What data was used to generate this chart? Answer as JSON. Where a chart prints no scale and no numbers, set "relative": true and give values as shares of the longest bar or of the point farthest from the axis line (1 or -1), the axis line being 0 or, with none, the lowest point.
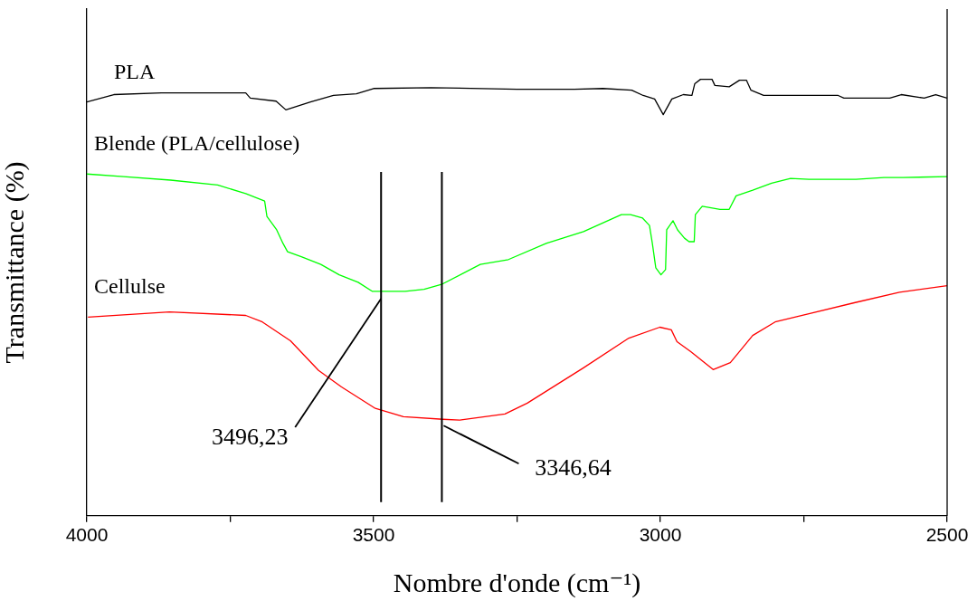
{
  "chart_data": {
    "type": "line",
    "relative": true,
    "xlabel": "Nombre d'onde (cm⁻¹)",
    "ylabel": "Transmittance (%)",
    "xlim": [
      4000,
      2500
    ],
    "xticks": [
      4000,
      {
        "value": 3750,
        "label": null
      },
      3500,
      {
        "value": 3250,
        "label": null
      },
      3000,
      {
        "value": 2750,
        "label": null
      },
      2500
    ],
    "grid": false,
    "legend": false,
    "marker": "none",
    "line_style": "solid",
    "series": [
      {
        "name": "PLA",
        "color": "#000000",
        "x": [
          4000,
          3953,
          3870,
          3723,
          3715,
          3670,
          3653,
          3610,
          3570,
          3530,
          3500,
          3400,
          3250,
          3150,
          3100,
          3050,
          3030,
          3010,
          2995,
          2980,
          2960,
          2945,
          2940,
          2930,
          2910,
          2905,
          2880,
          2862,
          2850,
          2842,
          2820,
          2690,
          2680,
          2600,
          2580,
          2540,
          2520,
          2500
        ],
        "values": [
          0.948,
          0.965,
          0.969,
          0.969,
          0.957,
          0.95,
          0.93,
          0.948,
          0.963,
          0.967,
          0.979,
          0.981,
          0.977,
          0.977,
          0.979,
          0.975,
          0.963,
          0.955,
          0.919,
          0.955,
          0.965,
          0.963,
          0.99,
          1.0,
          1.0,
          0.986,
          0.983,
          0.998,
          0.998,
          0.975,
          0.963,
          0.963,
          0.957,
          0.957,
          0.965,
          0.957,
          0.965,
          0.957
        ]
      },
      {
        "name": "Blende (PLA/cellulose)",
        "color": "#00ff00",
        "x": [
          4000,
          3936,
          3854,
          3772,
          3723,
          3690,
          3686,
          3669,
          3658,
          3650,
          3625,
          3592,
          3560,
          3527,
          3502,
          3487,
          3445,
          3412,
          3380,
          3314,
          3265,
          3199,
          3134,
          3068,
          3052,
          3031,
          3019,
          3014,
          3008,
          2999,
          2991,
          2989,
          2978,
          2970,
          2958,
          2950,
          2941,
          2939,
          2927,
          2896,
          2880,
          2868,
          2839,
          2806,
          2773,
          2741,
          2659,
          2610,
          2577,
          2500
        ],
        "values": [
          0.783,
          0.777,
          0.769,
          0.758,
          0.738,
          0.721,
          0.686,
          0.655,
          0.624,
          0.605,
          0.593,
          0.576,
          0.552,
          0.535,
          0.514,
          0.514,
          0.514,
          0.519,
          0.531,
          0.576,
          0.587,
          0.624,
          0.651,
          0.69,
          0.69,
          0.682,
          0.665,
          0.624,
          0.568,
          0.552,
          0.564,
          0.655,
          0.676,
          0.655,
          0.636,
          0.628,
          0.628,
          0.69,
          0.709,
          0.702,
          0.702,
          0.733,
          0.746,
          0.762,
          0.773,
          0.771,
          0.771,
          0.775,
          0.775,
          0.777
        ]
      },
      {
        "name": "Cellulse",
        "color": "#ff0000",
        "x": [
          3998,
          3856,
          3723,
          3694,
          3645,
          3596,
          3556,
          3497,
          3448,
          3379,
          3350,
          3271,
          3232,
          3134,
          3055,
          3001,
          2981,
          2971,
          2947,
          2908,
          2878,
          2839,
          2800,
          2741,
          2662,
          2583,
          2500
        ],
        "values": [
          0.455,
          0.467,
          0.459,
          0.444,
          0.401,
          0.333,
          0.295,
          0.246,
          0.227,
          0.221,
          0.219,
          0.233,
          0.258,
          0.339,
          0.407,
          0.432,
          0.426,
          0.399,
          0.376,
          0.335,
          0.351,
          0.413,
          0.444,
          0.463,
          0.488,
          0.512,
          0.527
        ]
      }
    ],
    "ref_lines": [
      {
        "axis": "x",
        "value": 3487
      },
      {
        "axis": "x",
        "value": 3381
      }
    ],
    "annotations": [
      {
        "text": "3496,23",
        "x": 3487,
        "y": 0.514
      },
      {
        "text": "3346,64",
        "x": 3381,
        "y": 0.221
      }
    ]
  }
}
